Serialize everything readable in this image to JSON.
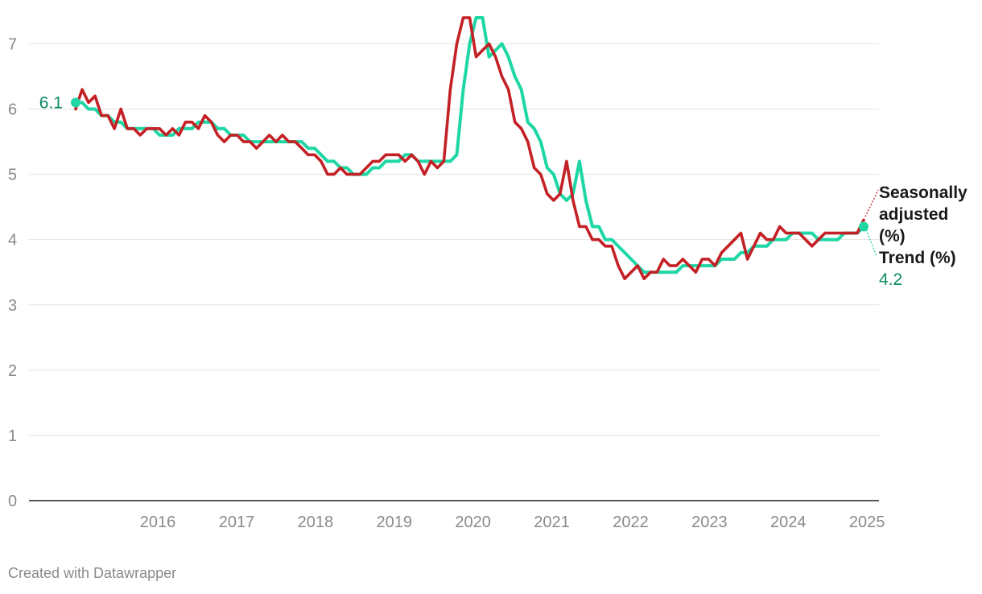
{
  "chart_data": {
    "type": "line",
    "title": "",
    "xlabel": "",
    "ylabel": "",
    "ylim": [
      0,
      7.4
    ],
    "yticks": [
      0,
      1,
      2,
      3,
      4,
      5,
      6,
      7
    ],
    "xticks": [
      "2016",
      "2017",
      "2018",
      "2019",
      "2020",
      "2021",
      "2022",
      "2023",
      "2024",
      "2025"
    ],
    "x_start": "2015-06",
    "x_end": "2025-06",
    "grid": true,
    "series": [
      {
        "name": "Trend (%)",
        "color": "#1ed7a4",
        "label_color": "#0b8a66",
        "start_label": "6.1",
        "end_label": "4.2",
        "values": [
          6.1,
          6.1,
          6.0,
          6.0,
          5.9,
          5.9,
          5.8,
          5.8,
          5.7,
          5.7,
          5.7,
          5.7,
          5.7,
          5.6,
          5.6,
          5.6,
          5.7,
          5.7,
          5.7,
          5.8,
          5.8,
          5.8,
          5.7,
          5.7,
          5.6,
          5.6,
          5.6,
          5.5,
          5.5,
          5.5,
          5.5,
          5.5,
          5.5,
          5.5,
          5.5,
          5.5,
          5.4,
          5.4,
          5.3,
          5.2,
          5.2,
          5.1,
          5.1,
          5.0,
          5.0,
          5.0,
          5.1,
          5.1,
          5.2,
          5.2,
          5.2,
          5.3,
          5.3,
          5.2,
          5.2,
          5.2,
          5.2,
          5.2,
          5.2,
          5.3,
          6.3,
          7.0,
          7.4,
          7.4,
          6.8,
          6.9,
          7.0,
          6.8,
          6.5,
          6.3,
          5.8,
          5.7,
          5.5,
          5.1,
          5.0,
          4.7,
          4.6,
          4.7,
          5.2,
          4.6,
          4.2,
          4.2,
          4.0,
          4.0,
          3.9,
          3.8,
          3.7,
          3.6,
          3.5,
          3.5,
          3.5,
          3.5,
          3.5,
          3.5,
          3.6,
          3.6,
          3.6,
          3.6,
          3.6,
          3.6,
          3.7,
          3.7,
          3.7,
          3.8,
          3.8,
          3.9,
          3.9,
          3.9,
          4.0,
          4.0,
          4.0,
          4.1,
          4.1,
          4.1,
          4.1,
          4.0,
          4.0,
          4.0,
          4.0,
          4.1,
          4.1,
          4.1,
          4.2
        ]
      },
      {
        "name": "Seasonally adjusted (%)",
        "name_lines": [
          "Seasonally",
          "adjusted",
          "(%)"
        ],
        "color": "#c42126",
        "values": [
          6.0,
          6.3,
          6.1,
          6.2,
          5.9,
          5.9,
          5.7,
          6.0,
          5.7,
          5.7,
          5.6,
          5.7,
          5.7,
          5.7,
          5.6,
          5.7,
          5.6,
          5.8,
          5.8,
          5.7,
          5.9,
          5.8,
          5.6,
          5.5,
          5.6,
          5.6,
          5.5,
          5.5,
          5.4,
          5.5,
          5.6,
          5.5,
          5.6,
          5.5,
          5.5,
          5.4,
          5.3,
          5.3,
          5.2,
          5.0,
          5.0,
          5.1,
          5.0,
          5.0,
          5.0,
          5.1,
          5.2,
          5.2,
          5.3,
          5.3,
          5.3,
          5.2,
          5.3,
          5.2,
          5.0,
          5.2,
          5.1,
          5.2,
          6.3,
          7.0,
          7.4,
          7.4,
          6.8,
          6.9,
          7.0,
          6.8,
          6.5,
          6.3,
          5.8,
          5.7,
          5.5,
          5.1,
          5.0,
          4.7,
          4.6,
          4.7,
          5.2,
          4.6,
          4.2,
          4.2,
          4.0,
          4.0,
          3.9,
          3.9,
          3.6,
          3.4,
          3.5,
          3.6,
          3.4,
          3.5,
          3.5,
          3.7,
          3.6,
          3.6,
          3.7,
          3.6,
          3.5,
          3.7,
          3.7,
          3.6,
          3.8,
          3.9,
          4.0,
          4.1,
          3.7,
          3.9,
          4.1,
          4.0,
          4.0,
          4.2,
          4.1,
          4.1,
          4.1,
          4.0,
          3.9,
          4.0,
          4.1,
          4.1,
          4.1,
          4.1,
          4.1,
          4.1,
          4.3
        ]
      }
    ]
  },
  "footer": {
    "credit": "Created with Datawrapper"
  }
}
